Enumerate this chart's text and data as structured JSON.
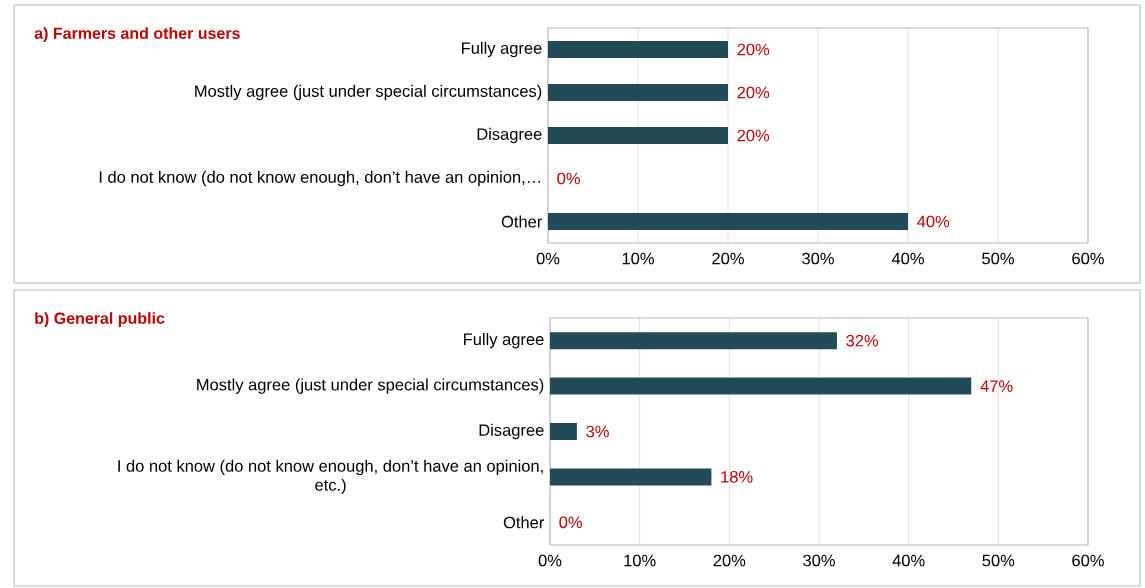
{
  "chart_data": [
    {
      "type": "bar",
      "orientation": "horizontal",
      "title": "a) Farmers and other users",
      "categories": [
        "Fully agree",
        "Mostly agree (just under special circumstances)",
        "Disagree",
        "I do not know (do not know enough, don’t have an opinion,…",
        "Other"
      ],
      "values": [
        20,
        20,
        20,
        0,
        40
      ],
      "color": "#234b57",
      "value_labels": [
        "20%",
        "20%",
        "20%",
        "0%",
        "40%"
      ],
      "xlim": [
        0,
        60
      ],
      "xticks": [
        {
          "value": 0,
          "label": "0%"
        },
        {
          "value": 10,
          "label": "10%"
        },
        {
          "value": 20,
          "label": "20%"
        },
        {
          "value": 30,
          "label": "30%"
        },
        {
          "value": 40,
          "label": "40%"
        },
        {
          "value": 50,
          "label": "50%"
        },
        {
          "value": 60,
          "label": "60%"
        }
      ],
      "grid": "x"
    },
    {
      "type": "bar",
      "orientation": "horizontal",
      "title": "b)  General public",
      "categories": [
        "Fully agree",
        "Mostly agree (just under special circumstances)",
        "Disagree",
        "I do not know (do not know enough, don’t have an opinion, etc.)",
        "Other"
      ],
      "values": [
        32,
        47,
        3,
        18,
        0
      ],
      "color": "#234b57",
      "value_labels": [
        "32%",
        "47%",
        "3%",
        "18%",
        "0%"
      ],
      "xlim": [
        0,
        60
      ],
      "xticks": [
        {
          "value": 0,
          "label": "0%"
        },
        {
          "value": 10,
          "label": "10%"
        },
        {
          "value": 20,
          "label": "20%"
        },
        {
          "value": 30,
          "label": "30%"
        },
        {
          "value": 40,
          "label": "40%"
        },
        {
          "value": 50,
          "label": "50%"
        },
        {
          "value": 60,
          "label": "60%"
        }
      ],
      "grid": "x"
    }
  ]
}
